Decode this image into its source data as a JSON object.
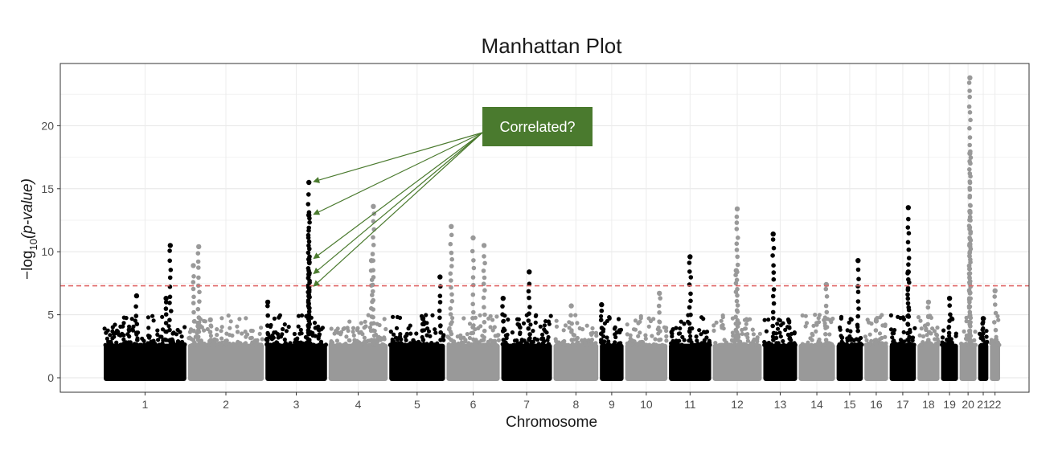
{
  "chart_data": {
    "type": "scatter",
    "title": "Manhattan Plot",
    "xlabel": "Chromosome",
    "ylabel_prefix": "−log",
    "ylabel_subscript": "10",
    "ylabel_paren": "(p-value)",
    "ylim": [
      -1,
      25
    ],
    "yticks": [
      0,
      5,
      10,
      15,
      20
    ],
    "grid": true,
    "significance_threshold": 7.3,
    "threshold_color": "#e06666",
    "colors": {
      "dark": "#000000",
      "light": "#999999"
    },
    "chromosomes": [
      {
        "label": "1",
        "color": "dark",
        "peaks": [
          {
            "offset": 0.4,
            "p": 6.5
          },
          {
            "offset": 0.8,
            "p": 10.5
          },
          {
            "offset": 0.75,
            "p": 6.3
          }
        ]
      },
      {
        "label": "2",
        "color": "light",
        "peaks": [
          {
            "offset": 0.08,
            "p": 8.9
          },
          {
            "offset": 0.15,
            "p": 10.4
          },
          {
            "offset": 0.3,
            "p": 4.6
          }
        ]
      },
      {
        "label": "3",
        "color": "dark",
        "peaks": [
          {
            "offset": 0.7,
            "p": 15.5
          },
          {
            "offset": 0.7,
            "p": 12.9
          },
          {
            "offset": 0.7,
            "p": 9.4
          },
          {
            "offset": 0.7,
            "p": 8.2
          },
          {
            "offset": 0.7,
            "p": 7.2
          },
          {
            "offset": 0.05,
            "p": 6.0
          }
        ]
      },
      {
        "label": "4",
        "color": "light",
        "peaks": [
          {
            "offset": 0.75,
            "p": 13.6
          },
          {
            "offset": 0.72,
            "p": 9.3
          }
        ]
      },
      {
        "label": "5",
        "color": "dark",
        "peaks": [
          {
            "offset": 0.9,
            "p": 8.0
          },
          {
            "offset": 0.6,
            "p": 4.7
          }
        ]
      },
      {
        "label": "6",
        "color": "light",
        "peaks": [
          {
            "offset": 0.1,
            "p": 12.0
          },
          {
            "offset": 0.5,
            "p": 11.1
          },
          {
            "offset": 0.7,
            "p": 10.5
          }
        ]
      },
      {
        "label": "7",
        "color": "dark",
        "peaks": [
          {
            "offset": 0.55,
            "p": 8.4
          },
          {
            "offset": 0.05,
            "p": 6.3
          }
        ]
      },
      {
        "label": "8",
        "color": "light",
        "peaks": [
          {
            "offset": 0.4,
            "p": 5.7
          }
        ]
      },
      {
        "label": "9",
        "color": "dark",
        "peaks": [
          {
            "offset": 0.1,
            "p": 5.8
          }
        ]
      },
      {
        "label": "10",
        "color": "light",
        "peaks": [
          {
            "offset": 0.8,
            "p": 6.7
          }
        ]
      },
      {
        "label": "11",
        "color": "dark",
        "peaks": [
          {
            "offset": 0.5,
            "p": 9.6
          }
        ]
      },
      {
        "label": "12",
        "color": "light",
        "peaks": [
          {
            "offset": 0.5,
            "p": 13.4
          },
          {
            "offset": 0.48,
            "p": 8.5
          }
        ]
      },
      {
        "label": "13",
        "color": "dark",
        "peaks": [
          {
            "offset": 0.3,
            "p": 11.4
          }
        ]
      },
      {
        "label": "14",
        "color": "light",
        "peaks": [
          {
            "offset": 0.75,
            "p": 7.4
          }
        ]
      },
      {
        "label": "15",
        "color": "dark",
        "peaks": [
          {
            "offset": 0.8,
            "p": 9.3
          }
        ]
      },
      {
        "label": "16",
        "color": "light",
        "peaks": [
          {
            "offset": 0.5,
            "p": 4.5
          }
        ]
      },
      {
        "label": "17",
        "color": "dark",
        "peaks": [
          {
            "offset": 0.7,
            "p": 13.5
          },
          {
            "offset": 0.7,
            "p": 8.4
          }
        ]
      },
      {
        "label": "18",
        "color": "light",
        "peaks": [
          {
            "offset": 0.5,
            "p": 6.0
          }
        ]
      },
      {
        "label": "19",
        "color": "dark",
        "peaks": [
          {
            "offset": 0.5,
            "p": 6.3
          }
        ]
      },
      {
        "label": "20",
        "color": "light",
        "peaks": [
          {
            "offset": 0.6,
            "p": 23.8
          },
          {
            "offset": 0.6,
            "p": 17.8
          },
          {
            "offset": 0.6,
            "p": 13.2
          },
          {
            "offset": 0.6,
            "p": 10.6
          }
        ]
      },
      {
        "label": "21",
        "color": "dark",
        "peaks": [
          {
            "offset": 0.5,
            "p": 4.7
          }
        ]
      },
      {
        "label": "22",
        "color": "light",
        "peaks": [
          {
            "offset": 0.5,
            "p": 6.9
          }
        ]
      }
    ],
    "annotation": {
      "text": "Correlated?",
      "box_color": "#4a7a2e",
      "arrow_color": "#4a7a2e",
      "targets": [
        {
          "chromosome": "3",
          "p": 15.5
        },
        {
          "chromosome": "3",
          "p": 12.9
        },
        {
          "chromosome": "3",
          "p": 9.4
        },
        {
          "chromosome": "3",
          "p": 8.2
        },
        {
          "chromosome": "3",
          "p": 7.2
        }
      ]
    }
  }
}
